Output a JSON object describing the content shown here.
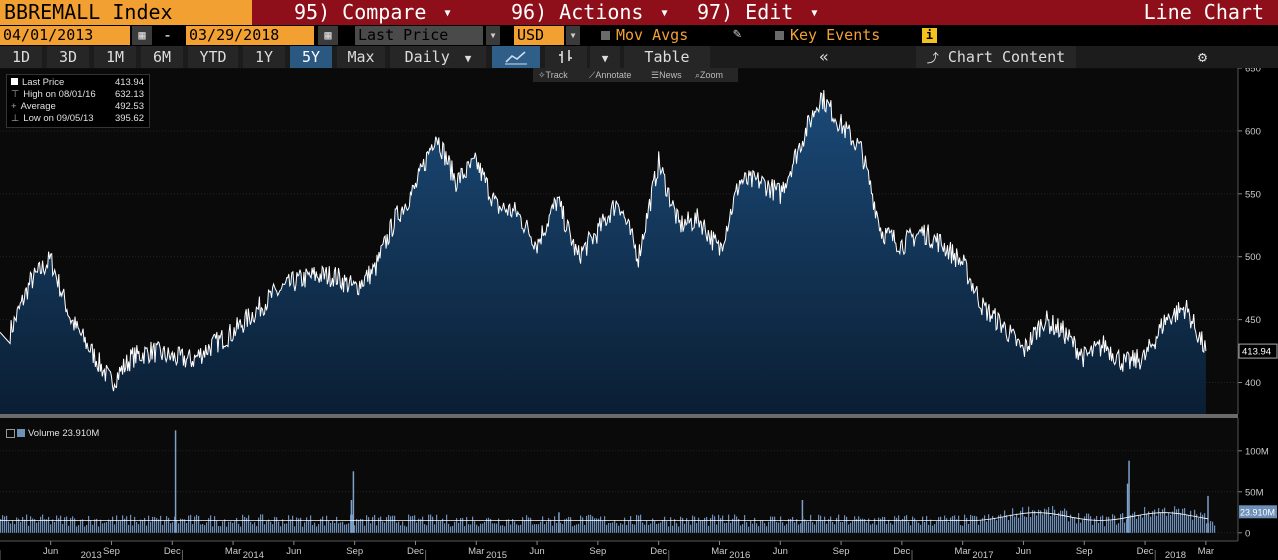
{
  "header": {
    "ticker": "BBREMALL Index",
    "menu_compare": "95) Compare",
    "menu_actions": "96) Actions",
    "menu_edit": "97) Edit",
    "chart_type": "Line Chart"
  },
  "controls": {
    "start_date": "04/01/2013",
    "dash": "-",
    "end_date": "03/29/2018",
    "field": "Last Price",
    "currency": "USD",
    "mov_avgs": "Mov Avgs",
    "key_events": "Key Events",
    "info": "i"
  },
  "periods": [
    "1D",
    "3D",
    "1M",
    "6M",
    "YTD",
    "1Y",
    "5Y",
    "Max"
  ],
  "active_period": "5Y",
  "frequency": "Daily",
  "table_label": "Table",
  "chart_content_label": "Chart Content",
  "tools": {
    "track": "Track",
    "annotate": "Annotate",
    "news": "News",
    "zoom": "Zoom"
  },
  "legend": {
    "last_price_label": "Last Price",
    "last_price_value": "413.94",
    "high_label": "High on 08/01/16",
    "high_value": "632.13",
    "avg_label": "Average",
    "avg_value": "492.53",
    "low_label": "Low on 09/05/13",
    "low_value": "395.62"
  },
  "volume_legend": {
    "label": "Volume",
    "value": "23.910M"
  },
  "colors": {
    "accent": "#f3a033",
    "title_bar": "#8e0f1a",
    "area_top": "#1b4a78",
    "line": "#ffffff",
    "volume": "#6d8fb8"
  },
  "chart_data": [
    {
      "type": "area",
      "series_label": "Last Price",
      "ylim": [
        375,
        650
      ],
      "yticks": [
        400,
        450,
        500,
        550,
        600,
        650
      ],
      "last_value_tag": "413.94",
      "x": [
        "2013-04",
        "2013-05",
        "2013-06",
        "2013-07",
        "2013-08",
        "2013-09",
        "2013-10",
        "2013-11",
        "2013-12",
        "2014-01",
        "2014-02",
        "2014-03",
        "2014-04",
        "2014-05",
        "2014-06",
        "2014-07",
        "2014-08",
        "2014-09",
        "2014-10",
        "2014-11",
        "2014-12",
        "2015-01",
        "2015-02",
        "2015-03",
        "2015-04",
        "2015-05",
        "2015-06",
        "2015-07",
        "2015-08",
        "2015-09",
        "2015-10",
        "2015-11",
        "2015-12",
        "2016-01",
        "2016-02",
        "2016-03",
        "2016-04",
        "2016-05",
        "2016-06",
        "2016-07",
        "2016-08",
        "2016-09",
        "2016-10",
        "2016-11",
        "2016-12",
        "2017-01",
        "2017-02",
        "2017-03",
        "2017-04",
        "2017-05",
        "2017-06",
        "2017-07",
        "2017-08",
        "2017-09",
        "2017-10",
        "2017-11",
        "2017-12",
        "2018-01",
        "2018-02",
        "2018-03"
      ],
      "values": [
        440,
        480,
        498,
        450,
        425,
        400,
        420,
        425,
        420,
        418,
        430,
        440,
        455,
        470,
        480,
        485,
        485,
        475,
        490,
        530,
        555,
        598,
        560,
        575,
        540,
        535,
        510,
        545,
        500,
        520,
        545,
        500,
        575,
        525,
        530,
        505,
        560,
        560,
        550,
        590,
        628,
        605,
        585,
        520,
        510,
        520,
        510,
        495,
        460,
        445,
        425,
        450,
        440,
        420,
        430,
        415,
        420,
        450,
        460,
        425
      ],
      "xticks": [
        "Jun",
        "Sep",
        "Dec",
        "Mar",
        "Jun",
        "Sep",
        "Dec",
        "Mar",
        "Jun",
        "Sep",
        "Dec",
        "Mar",
        "Jun",
        "Sep",
        "Dec",
        "Mar",
        "Jun",
        "Sep",
        "Dec",
        "Mar"
      ],
      "years": [
        "2013",
        "2014",
        "2015",
        "2016",
        "2017",
        "2018"
      ]
    },
    {
      "type": "bar",
      "series_label": "Volume",
      "ylim": [
        -10,
        140
      ],
      "yticks": [
        0,
        50,
        100
      ],
      "ytick_labels": [
        "0",
        "50M",
        "100M"
      ],
      "last_value_tag": "23.910M",
      "baseline": 15,
      "spikes": [
        {
          "month": "2013-12",
          "value": 125
        },
        {
          "month": "2014-09",
          "value": 75
        },
        {
          "month": "2014-09",
          "value": 40
        },
        {
          "month": "2015-07",
          "value": 25
        },
        {
          "month": "2016-07",
          "value": 40
        },
        {
          "month": "2017-11",
          "value": 88
        },
        {
          "month": "2017-11",
          "value": 60
        },
        {
          "month": "2018-03",
          "value": 45
        }
      ]
    }
  ]
}
